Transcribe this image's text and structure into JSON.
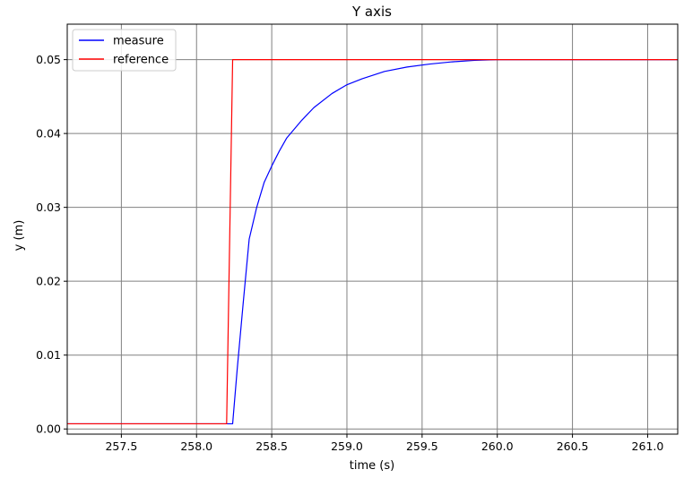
{
  "chart_data": {
    "type": "line",
    "title": "Y axis",
    "xlabel": "time (s)",
    "ylabel": "y (m)",
    "xlim": [
      257.14,
      261.2
    ],
    "ylim": [
      -0.0007,
      0.0548
    ],
    "xticks": [
      257.5,
      258.0,
      258.5,
      259.0,
      259.5,
      260.0,
      260.5,
      261.0
    ],
    "xtick_labels": [
      "257.5",
      "258.0",
      "258.5",
      "259.0",
      "259.5",
      "260.0",
      "260.5",
      "261.0"
    ],
    "yticks": [
      0.0,
      0.01,
      0.02,
      0.03,
      0.04,
      0.05
    ],
    "ytick_labels": [
      "0.00",
      "0.01",
      "0.02",
      "0.03",
      "0.04",
      "0.05"
    ],
    "grid": true,
    "legend_position": "top-left",
    "series": [
      {
        "name": "measure",
        "color": "#0000ff",
        "x": [
          257.14,
          258.24,
          258.27,
          258.31,
          258.35,
          258.4,
          258.45,
          258.5,
          258.55,
          258.6,
          258.7,
          258.78,
          258.9,
          259.0,
          259.1,
          259.25,
          259.4,
          259.55,
          259.7,
          259.85,
          260.0,
          260.2,
          260.5,
          261.2
        ],
        "y": [
          0.0007,
          0.0007,
          0.008,
          0.017,
          0.0257,
          0.03,
          0.0334,
          0.0356,
          0.0376,
          0.0394,
          0.0418,
          0.0435,
          0.0454,
          0.0466,
          0.0474,
          0.0484,
          0.049,
          0.0494,
          0.0497,
          0.0499,
          0.05,
          0.05,
          0.05,
          0.05
        ]
      },
      {
        "name": "reference",
        "color": "#ff0000",
        "x": [
          257.14,
          258.2,
          258.24,
          261.2
        ],
        "y": [
          0.0007,
          0.0007,
          0.05,
          0.05
        ]
      }
    ]
  }
}
